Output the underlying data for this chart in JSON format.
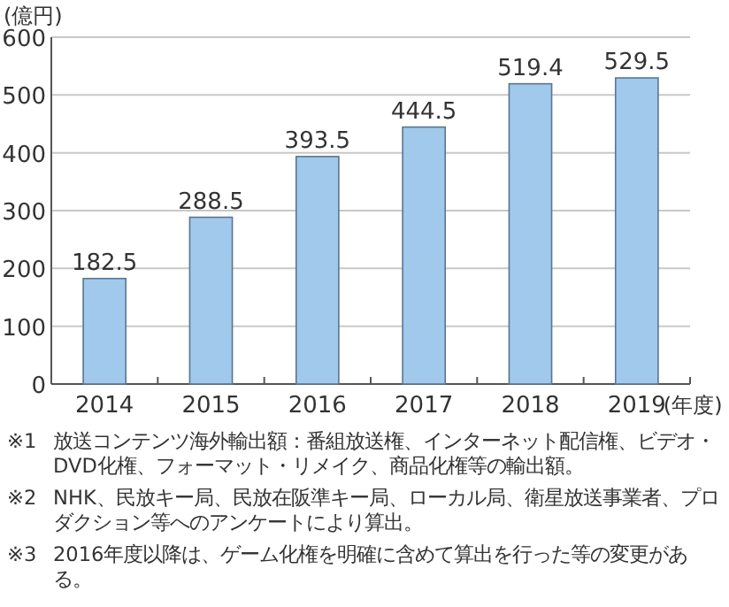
{
  "chart_data": {
    "type": "bar",
    "ylabel": "(億円)",
    "xlabel": "(年度)",
    "categories": [
      "2014",
      "2015",
      "2016",
      "2017",
      "2018",
      "2019"
    ],
    "values": [
      182.5,
      288.5,
      393.5,
      444.5,
      519.4,
      529.5
    ],
    "color": "#a0c9ec",
    "ylim": [
      0,
      600
    ],
    "yticks": [
      0,
      100,
      200,
      300,
      400,
      500,
      600
    ],
    "grid": "y",
    "data_labels": true,
    "annotations": [
      "※1 放送コンテンツ海外輸出額：番組放送権、インターネット配信権、ビデオ・DVD化権、フォーマット・リメイク、商品化権等の輸出額。",
      "※2 NHK、民放キー局、民放在阪準キー局、ローカル局、衛星放送事業者、プロダクション等へのアンケートにより算出。",
      "※3 2016年度以降は、ゲーム化権を明確に含めて算出を行った等の変更がある。"
    ]
  }
}
